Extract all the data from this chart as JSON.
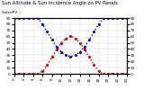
{
  "title_line1": "Sun Altitude & Sun Incidence Angle on PV Panels",
  "title_line2": "Solar/PV  --",
  "background_color": "#ffffff",
  "grid_color": "#bbbbbb",
  "x_values": [
    0,
    1,
    2,
    3,
    4,
    5,
    6,
    7,
    8,
    9,
    10,
    11,
    12,
    13,
    14,
    15,
    16,
    17,
    18,
    19,
    20,
    21,
    22,
    23,
    24
  ],
  "sun_altitude": [
    0,
    0,
    0,
    0,
    0,
    0,
    4,
    14,
    27,
    39,
    50,
    57,
    61,
    57,
    50,
    39,
    27,
    14,
    4,
    0,
    0,
    0,
    0,
    0,
    0
  ],
  "sun_incidence": [
    90,
    90,
    90,
    90,
    90,
    90,
    80,
    68,
    55,
    44,
    35,
    30,
    28,
    30,
    35,
    44,
    55,
    68,
    80,
    90,
    90,
    90,
    90,
    90,
    90
  ],
  "altitude_color": "#cc0000",
  "incidence_color": "#0000cc",
  "xlim": [
    0,
    24
  ],
  "ylim": [
    0,
    90
  ],
  "xtick_positions": [
    0,
    2,
    4,
    6,
    8,
    10,
    12,
    14,
    16,
    18,
    20,
    22,
    24
  ],
  "xtick_labels": [
    "0",
    "2",
    "4",
    "6",
    "8",
    "10",
    "12",
    "14",
    "16",
    "18",
    "20",
    "22",
    "24"
  ],
  "ytick_left": [
    0,
    10,
    20,
    30,
    40,
    50,
    60,
    70,
    80,
    90
  ],
  "ytick_right": [
    0,
    10,
    20,
    30,
    40,
    50,
    60,
    70,
    80,
    90
  ],
  "ytick_labels": [
    "0",
    "10",
    "20",
    "30",
    "40",
    "50",
    "60",
    "70",
    "80",
    "90"
  ],
  "title_fontsize": 3.8,
  "label_fontsize": 3.2,
  "tick_fontsize": 3.0,
  "linewidth": 1.0,
  "markersize": 1.2
}
